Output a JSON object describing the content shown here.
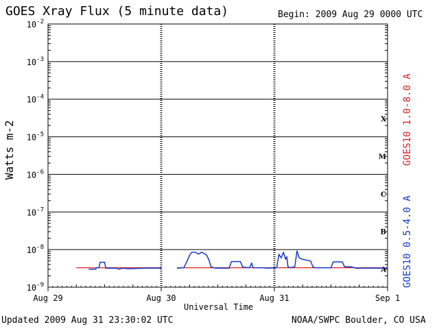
{
  "header": {
    "title": "GOES Xray Flux (5 minute data)",
    "begin": "Begin:  2009 Aug 29 0000 UTC"
  },
  "footer": {
    "updated": "Updated 2009 Aug 31 23:30:02 UTC",
    "credit": "NOAA/SWPC Boulder, CO USA"
  },
  "colors": {
    "long": "#e02020",
    "short": "#1038d0"
  },
  "chart_data": {
    "type": "line",
    "title": "GOES Xray Flux (5 minute data)",
    "xlabel": "Universal Time",
    "ylabel": "Watts m-2",
    "yscale": "log",
    "ylim": [
      1e-09,
      0.01
    ],
    "xlim": [
      0,
      3
    ],
    "x_units": "days since 2009 Aug 29 0000 UTC",
    "x_ticks": [
      {
        "x": 0,
        "label": "Aug 29"
      },
      {
        "x": 1,
        "label": "Aug 30"
      },
      {
        "x": 2,
        "label": "Aug 31"
      },
      {
        "x": 3,
        "label": "Sep 1"
      }
    ],
    "y_ticks": [
      {
        "exp": -2,
        "base": "10",
        "sup": "-2"
      },
      {
        "exp": -3,
        "base": "10",
        "sup": "-3"
      },
      {
        "exp": -4,
        "base": "10",
        "sup": "-4"
      },
      {
        "exp": -5,
        "base": "10",
        "sup": "-5"
      },
      {
        "exp": -6,
        "base": "10",
        "sup": "-6"
      },
      {
        "exp": -7,
        "base": "10",
        "sup": "-7"
      },
      {
        "exp": -8,
        "base": "10",
        "sup": "-8"
      },
      {
        "exp": -9,
        "base": "10",
        "sup": "-9"
      }
    ],
    "flare_classes": [
      {
        "label": "X",
        "exp": -4
      },
      {
        "label": "M",
        "exp": -5
      },
      {
        "label": "C",
        "exp": -6
      },
      {
        "label": "B",
        "exp": -7
      },
      {
        "label": "A",
        "exp": -8
      }
    ],
    "grid": true,
    "legend": "right, vertical",
    "series": [
      {
        "name": "GOES10 1.0-8.0 A",
        "color": "#e02020",
        "segments": [
          [
            [
              0.25,
              3.3e-09
            ],
            [
              1.0,
              3.3e-09
            ]
          ],
          [
            [
              1.14,
              3.3e-09
            ],
            [
              3.0,
              3.3e-09
            ]
          ]
        ]
      },
      {
        "name": "GOES10 0.5-4.0 A",
        "color": "#1038d0",
        "segments": [
          [
            [
              0.36,
              3e-09
            ],
            [
              0.42,
              3e-09
            ],
            [
              0.43,
              3.3e-09
            ],
            [
              0.45,
              3.3e-09
            ],
            [
              0.46,
              4.6e-09
            ],
            [
              0.5,
              4.6e-09
            ],
            [
              0.51,
              3.2e-09
            ],
            [
              0.6,
              3.2e-09
            ],
            [
              0.63,
              3e-09
            ],
            [
              0.65,
              3.2e-09
            ],
            [
              0.72,
              3.1e-09
            ],
            [
              0.85,
              3.2e-09
            ],
            [
              1.0,
              3.2e-09
            ]
          ],
          [
            [
              1.14,
              3.2e-09
            ],
            [
              1.2,
              3.3e-09
            ],
            [
              1.23,
              5e-09
            ],
            [
              1.25,
              7e-09
            ],
            [
              1.27,
              8.5e-09
            ],
            [
              1.3,
              8.5e-09
            ],
            [
              1.33,
              7.6e-09
            ],
            [
              1.36,
              8.5e-09
            ],
            [
              1.4,
              7.2e-09
            ],
            [
              1.42,
              5.5e-09
            ],
            [
              1.44,
              3.5e-09
            ],
            [
              1.48,
              3.2e-09
            ],
            [
              1.6,
              3.2e-09
            ],
            [
              1.62,
              4.8e-09
            ],
            [
              1.7,
              4.8e-09
            ],
            [
              1.72,
              3.4e-09
            ],
            [
              1.78,
              3.3e-09
            ],
            [
              1.8,
              4.4e-09
            ],
            [
              1.81,
              3.3e-09
            ],
            [
              1.9,
              3.3e-09
            ],
            [
              1.94,
              3.2e-09
            ],
            [
              2.02,
              3.3e-09
            ],
            [
              2.04,
              7.5e-09
            ],
            [
              2.06,
              6e-09
            ],
            [
              2.08,
              8.5e-09
            ],
            [
              2.1,
              5.5e-09
            ],
            [
              2.11,
              6.5e-09
            ],
            [
              2.12,
              3.5e-09
            ],
            [
              2.14,
              3.3e-09
            ],
            [
              2.18,
              3.5e-09
            ],
            [
              2.2,
              9.2e-09
            ],
            [
              2.22,
              6e-09
            ],
            [
              2.25,
              5.5e-09
            ],
            [
              2.32,
              5e-09
            ],
            [
              2.34,
              3.5e-09
            ],
            [
              2.36,
              3.3e-09
            ],
            [
              2.5,
              3.3e-09
            ],
            [
              2.52,
              4.7e-09
            ],
            [
              2.6,
              4.7e-09
            ],
            [
              2.62,
              3.5e-09
            ],
            [
              2.68,
              3.5e-09
            ],
            [
              2.72,
              3.2e-09
            ],
            [
              3.0,
              3.2e-09
            ]
          ]
        ]
      }
    ]
  }
}
